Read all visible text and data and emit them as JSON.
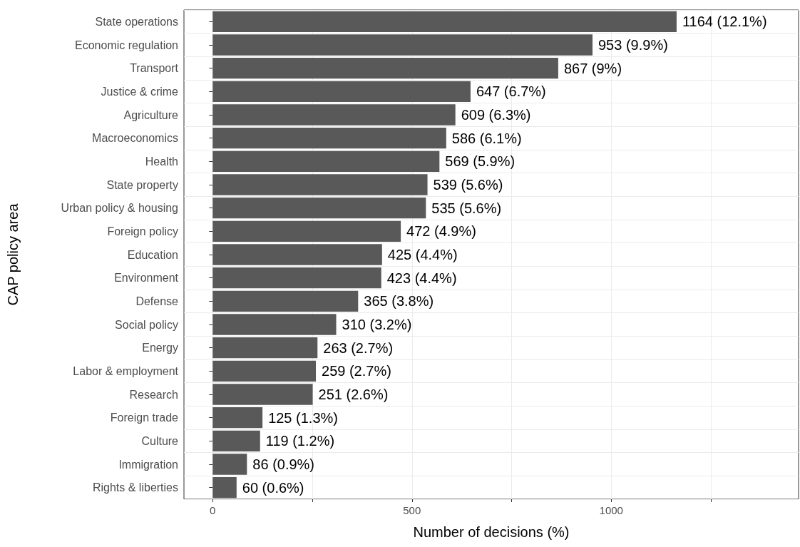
{
  "chart_data": {
    "type": "bar",
    "orientation": "horizontal",
    "xlabel": "Number of decisions (%)",
    "ylabel": "CAP policy area",
    "categories": [
      "State operations",
      "Economic regulation",
      "Transport",
      "Justice & crime",
      "Agriculture",
      "Macroeconomics",
      "Health",
      "State property",
      "Urban policy & housing",
      "Foreign policy",
      "Education",
      "Environment",
      "Defense",
      "Social policy",
      "Energy",
      "Labor & employment",
      "Research",
      "Foreign trade",
      "Culture",
      "Immigration",
      "Rights & liberties"
    ],
    "values": [
      1164,
      953,
      867,
      647,
      609,
      586,
      569,
      539,
      535,
      472,
      425,
      423,
      365,
      310,
      263,
      259,
      251,
      125,
      119,
      86,
      60
    ],
    "value_labels": [
      "1164 (12.1%)",
      "953 (9.9%)",
      "867 (9%)",
      "647 (6.7%)",
      "609 (6.3%)",
      "586 (6.1%)",
      "569 (5.9%)",
      "539 (5.6%)",
      "535 (5.6%)",
      "472 (4.9%)",
      "425 (4.4%)",
      "423 (4.4%)",
      "365 (3.8%)",
      "310 (3.2%)",
      "263 (2.7%)",
      "259 (2.7%)",
      "251 (2.6%)",
      "125 (1.3%)",
      "119 (1.2%)",
      "86 (0.9%)",
      "60 (0.6%)"
    ],
    "color": "#595959",
    "xlim": [
      -72,
      1470
    ],
    "xticks": [
      0,
      {
        "value": 250,
        "label": null
      },
      500,
      {
        "value": 750,
        "label": null
      },
      1000,
      {
        "value": 1250,
        "label": null
      }
    ],
    "grid": true
  }
}
